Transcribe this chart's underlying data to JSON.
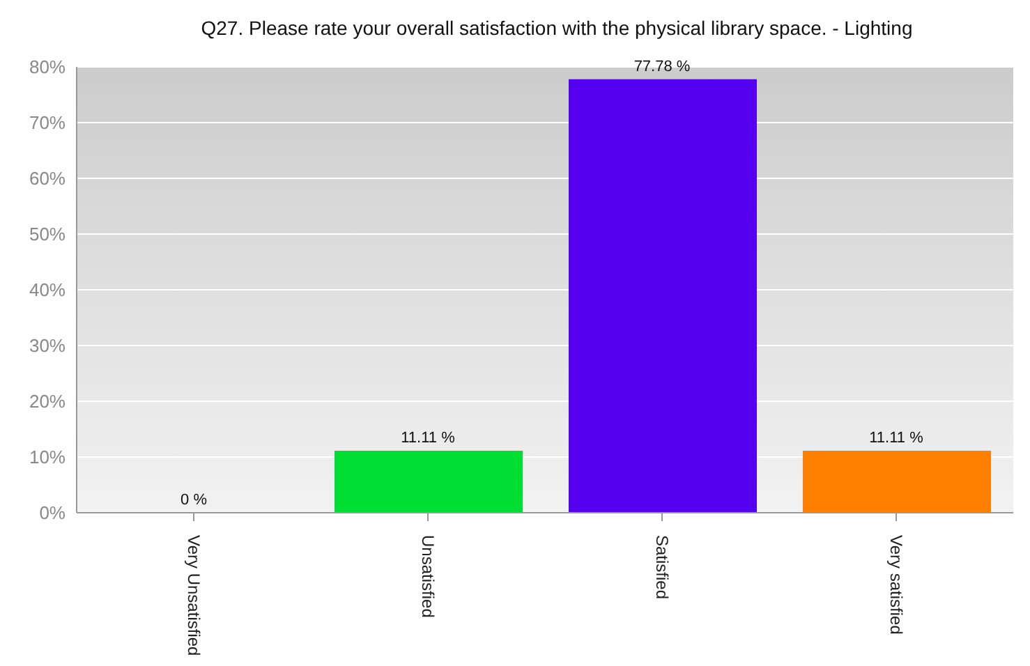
{
  "chart_data": {
    "type": "bar",
    "title": "Q27. Please rate your overall satisfaction with the physical library space. - Lighting",
    "categories": [
      "Very Unsatisfied",
      "Unsatisfied",
      "Satisfied",
      "Very satisfied"
    ],
    "values": [
      0,
      11.11,
      77.78,
      11.11
    ],
    "colors": [
      "#3366ff",
      "#00dd33",
      "#5500ee",
      "#ff8000"
    ],
    "value_labels": [
      "0 %",
      "11.11 %",
      "77.78 %",
      "11.11 %"
    ],
    "ylim": [
      0,
      80
    ],
    "yticks": [
      {
        "value": 0,
        "label": "0%"
      },
      {
        "value": 10,
        "label": "10%"
      },
      {
        "value": 20,
        "label": "20%"
      },
      {
        "value": 30,
        "label": "30%"
      },
      {
        "value": 40,
        "label": "40%"
      },
      {
        "value": 50,
        "label": "50%"
      },
      {
        "value": 60,
        "label": "60%"
      },
      {
        "value": 70,
        "label": "70%"
      },
      {
        "value": 80,
        "label": "80%"
      }
    ],
    "grid": "y",
    "legend": false
  }
}
